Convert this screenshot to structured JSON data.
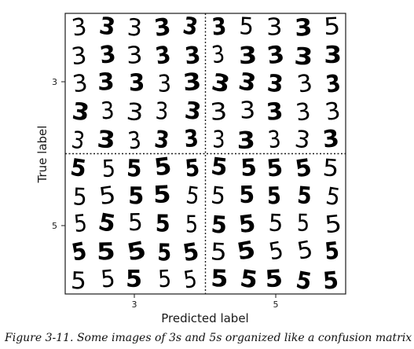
{
  "figure": {
    "caption": "Figure 3-11. Some images of 3s and 5s organized like a confusion matrix"
  },
  "chart_data": {
    "type": "image-grid",
    "xlabel": "Predicted label",
    "ylabel": "True label",
    "x_categories": [
      "3",
      "5"
    ],
    "y_categories": [
      "3",
      "5"
    ],
    "cells": [
      {
        "true": "3",
        "predicted": "3",
        "digits": [
          [
            "3",
            "3",
            "3",
            "3",
            "3"
          ],
          [
            "3",
            "3",
            "3",
            "3",
            "3"
          ],
          [
            "3",
            "3",
            "3",
            "3",
            "3"
          ],
          [
            "3",
            "3",
            "3",
            "3",
            "3"
          ],
          [
            "3",
            "3",
            "3",
            "3",
            "3"
          ]
        ]
      },
      {
        "true": "3",
        "predicted": "5",
        "digits": [
          [
            "3",
            "5",
            "3",
            "3",
            "5"
          ],
          [
            "3",
            "3",
            "3",
            "3",
            "3"
          ],
          [
            "3",
            "3",
            "3",
            "3",
            "3"
          ],
          [
            "3",
            "3",
            "3",
            "3",
            "3"
          ],
          [
            "3",
            "3",
            "3",
            "3",
            "3"
          ]
        ]
      },
      {
        "true": "5",
        "predicted": "3",
        "digits": [
          [
            "5",
            "5",
            "5",
            "5",
            "5"
          ],
          [
            "5",
            "5",
            "5",
            "5",
            "5"
          ],
          [
            "5",
            "5",
            "5",
            "5",
            "5"
          ],
          [
            "5",
            "5",
            "5",
            "5",
            "5"
          ],
          [
            "5",
            "5",
            "5",
            "5",
            "5"
          ]
        ]
      },
      {
        "true": "5",
        "predicted": "5",
        "digits": [
          [
            "5",
            "5",
            "5",
            "5",
            "5"
          ],
          [
            "5",
            "5",
            "5",
            "5",
            "5"
          ],
          [
            "5",
            "5",
            "5",
            "5",
            "5"
          ],
          [
            "5",
            "5",
            "5",
            "5",
            "5"
          ],
          [
            "5",
            "5",
            "5",
            "5",
            "5"
          ]
        ]
      }
    ]
  }
}
